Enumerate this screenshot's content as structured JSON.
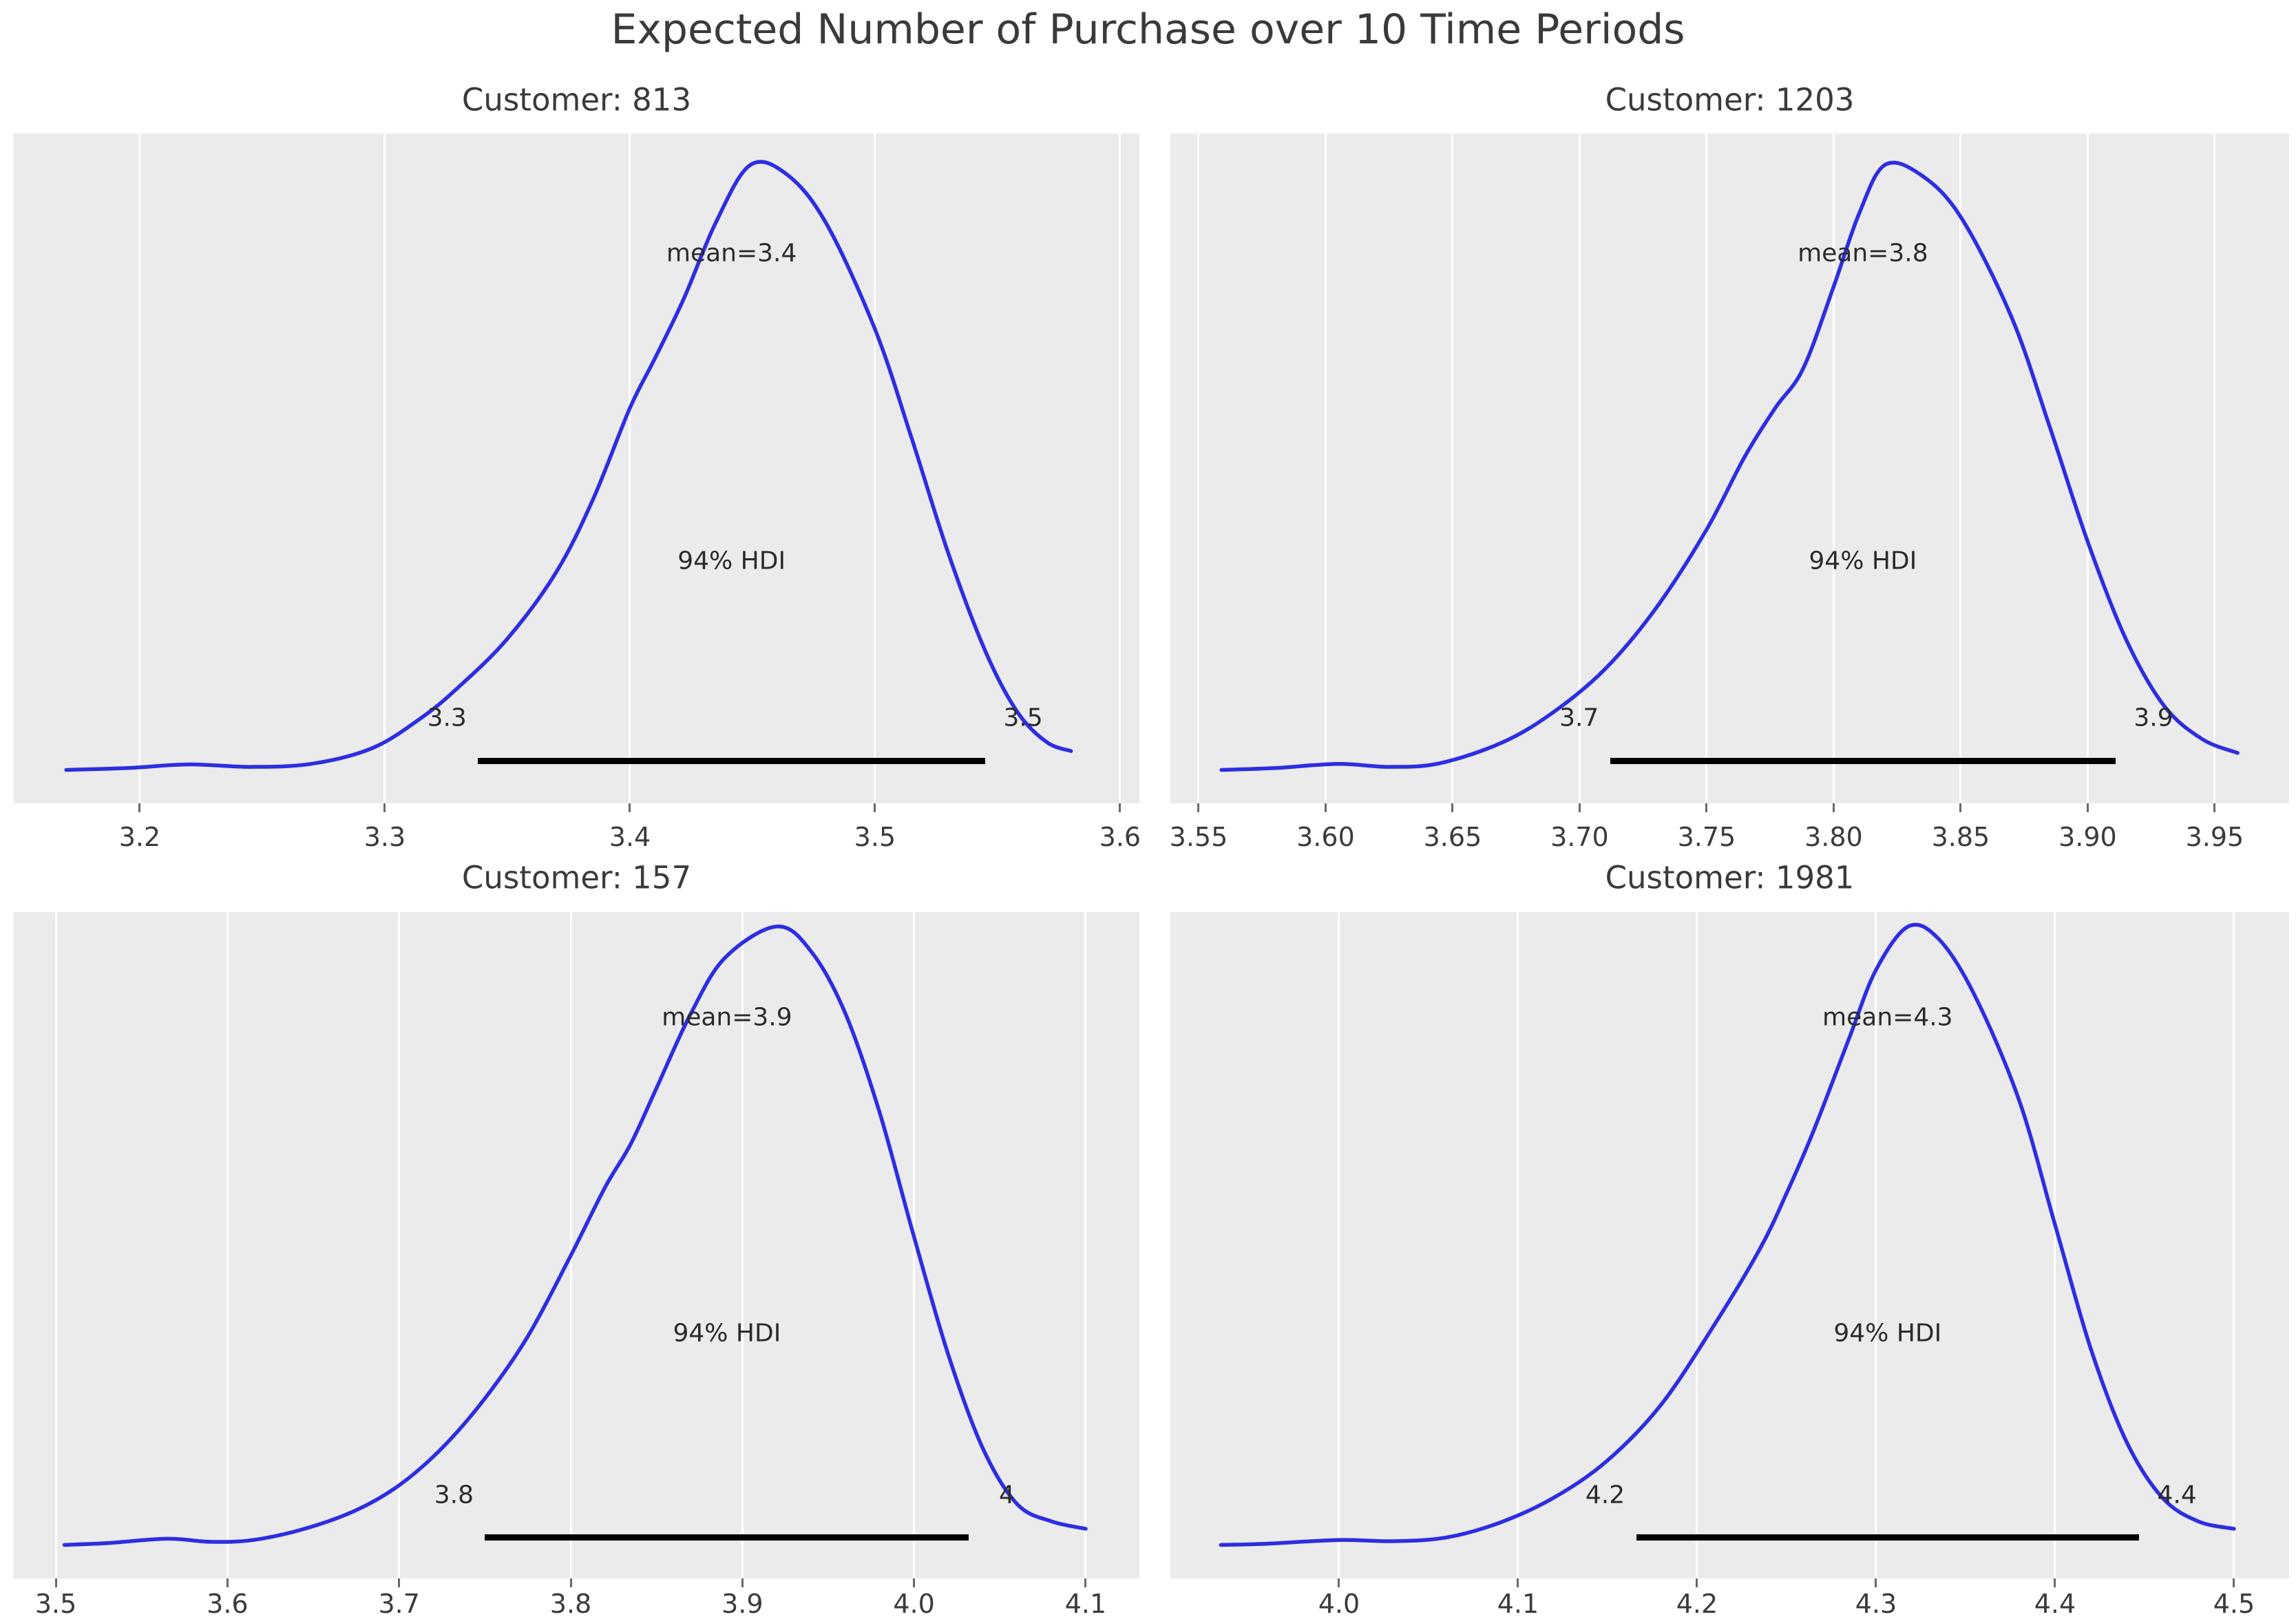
{
  "figure": {
    "title": "Expected Number of Purchase over 10 Time Periods"
  },
  "colors": {
    "curve": "#2d2de1",
    "plot_bg": "#ebebeb",
    "gridline": "#ffffff",
    "hdi_bar": "#000000",
    "text": "#2b2b2b"
  },
  "chart_data": {
    "type": "line",
    "title": "Expected Number of Purchase over 10 Time Periods",
    "description": "2x2 grid of posterior density (KDE) curves with 94% HDI bars",
    "legend": "none",
    "grid": "vertical-white-on-gray",
    "subplots": [
      {
        "title": "Customer: 813",
        "mean": 3.4,
        "mean_label": "mean=3.4",
        "hdi_text": "94% HDI",
        "hdi": {
          "lower": 3.338,
          "upper": 3.545,
          "lower_label": "3.3",
          "upper_label": "3.5"
        },
        "xlim": [
          3.1486,
          3.6079
        ],
        "xtick_values": [
          3.2,
          3.3,
          3.4,
          3.5,
          3.6
        ],
        "xtick_labels": [
          "3.2",
          "3.3",
          "3.4",
          "3.5",
          "3.6"
        ],
        "curve": {
          "x": [
            3.17,
            3.195,
            3.22,
            3.245,
            3.27,
            3.295,
            3.315,
            3.33,
            3.35,
            3.37,
            3.385,
            3.4,
            3.41,
            3.422,
            3.435,
            3.449,
            3.464,
            3.48,
            3.5,
            3.515,
            3.53,
            3.545,
            3.558,
            3.57,
            3.58
          ],
          "y": [
            0.004,
            0.007,
            0.013,
            0.009,
            0.014,
            0.04,
            0.09,
            0.14,
            0.22,
            0.33,
            0.45,
            0.6,
            0.68,
            0.78,
            0.905,
            1.0,
            0.985,
            0.905,
            0.73,
            0.55,
            0.36,
            0.2,
            0.1,
            0.05,
            0.035
          ]
        }
      },
      {
        "title": "Customer: 1203",
        "mean": 3.8,
        "mean_label": "mean=3.8",
        "hdi_text": "94% HDI",
        "hdi": {
          "lower": 3.712,
          "upper": 3.911,
          "lower_label": "3.7",
          "upper_label": "3.9"
        },
        "xlim": [
          3.5389,
          3.9793
        ],
        "xtick_values": [
          3.55,
          3.6,
          3.65,
          3.7,
          3.75,
          3.8,
          3.85,
          3.9,
          3.95
        ],
        "xtick_labels": [
          "3.55",
          "3.60",
          "3.65",
          "3.70",
          "3.75",
          "3.80",
          "3.85",
          "3.90",
          "3.95"
        ],
        "curve": {
          "x": [
            3.559,
            3.58,
            3.605,
            3.625,
            3.645,
            3.67,
            3.69,
            3.71,
            3.73,
            3.75,
            3.765,
            3.777,
            3.788,
            3.8,
            3.81,
            3.82,
            3.834,
            3.85,
            3.87,
            3.885,
            3.9,
            3.915,
            3.93,
            3.945,
            3.959
          ],
          "y": [
            0.004,
            0.007,
            0.014,
            0.009,
            0.015,
            0.05,
            0.1,
            0.17,
            0.27,
            0.4,
            0.52,
            0.6,
            0.665,
            0.8,
            0.92,
            1.0,
            0.985,
            0.915,
            0.75,
            0.57,
            0.38,
            0.22,
            0.11,
            0.055,
            0.032
          ]
        }
      },
      {
        "title": "Customer: 157",
        "mean": 3.9,
        "mean_label": "mean=3.9",
        "hdi_text": "94% HDI",
        "hdi": {
          "lower": 3.75,
          "upper": 4.032,
          "lower_label": "3.8",
          "upper_label": "4"
        },
        "xlim": [
          3.4755,
          4.1313
        ],
        "xtick_values": [
          3.5,
          3.6,
          3.7,
          3.8,
          3.9,
          4.0,
          4.1
        ],
        "xtick_labels": [
          "3.5",
          "3.6",
          "3.7",
          "3.8",
          "3.9",
          "4.0",
          "4.1"
        ],
        "curve": {
          "x": [
            3.505,
            3.53,
            3.565,
            3.59,
            3.615,
            3.645,
            3.675,
            3.7,
            3.725,
            3.75,
            3.775,
            3.8,
            3.82,
            3.835,
            3.85,
            3.87,
            3.89,
            3.92,
            3.94,
            3.96,
            3.98,
            4.0,
            4.02,
            4.04,
            4.06,
            4.08,
            4.1
          ],
          "y": [
            0.004,
            0.007,
            0.014,
            0.009,
            0.012,
            0.03,
            0.06,
            0.1,
            0.16,
            0.24,
            0.34,
            0.47,
            0.58,
            0.65,
            0.74,
            0.86,
            0.95,
            1.0,
            0.96,
            0.86,
            0.7,
            0.5,
            0.31,
            0.16,
            0.07,
            0.042,
            0.03
          ]
        }
      },
      {
        "title": "Customer: 1981",
        "mean": 4.3,
        "mean_label": "mean=4.3",
        "hdi_text": "94% HDI",
        "hdi": {
          "lower": 4.166,
          "upper": 4.447,
          "lower_label": "4.2",
          "upper_label": "4.4"
        },
        "xlim": [
          3.9058,
          4.5308
        ],
        "xtick_values": [
          4.0,
          4.1,
          4.2,
          4.3,
          4.4,
          4.5
        ],
        "xtick_labels": [
          "4.0",
          "4.1",
          "4.2",
          "4.3",
          "4.4",
          "4.5"
        ],
        "curve": {
          "x": [
            3.934,
            3.96,
            4.0,
            4.03,
            4.06,
            4.09,
            4.12,
            4.15,
            4.18,
            4.21,
            4.235,
            4.25,
            4.265,
            4.285,
            4.3,
            4.318,
            4.335,
            4.355,
            4.38,
            4.4,
            4.42,
            4.44,
            4.46,
            4.48,
            4.5
          ],
          "y": [
            0.004,
            0.006,
            0.012,
            0.01,
            0.016,
            0.04,
            0.08,
            0.14,
            0.23,
            0.36,
            0.48,
            0.57,
            0.67,
            0.82,
            0.93,
            1.0,
            0.98,
            0.89,
            0.72,
            0.52,
            0.32,
            0.17,
            0.08,
            0.042,
            0.03
          ]
        }
      }
    ]
  }
}
